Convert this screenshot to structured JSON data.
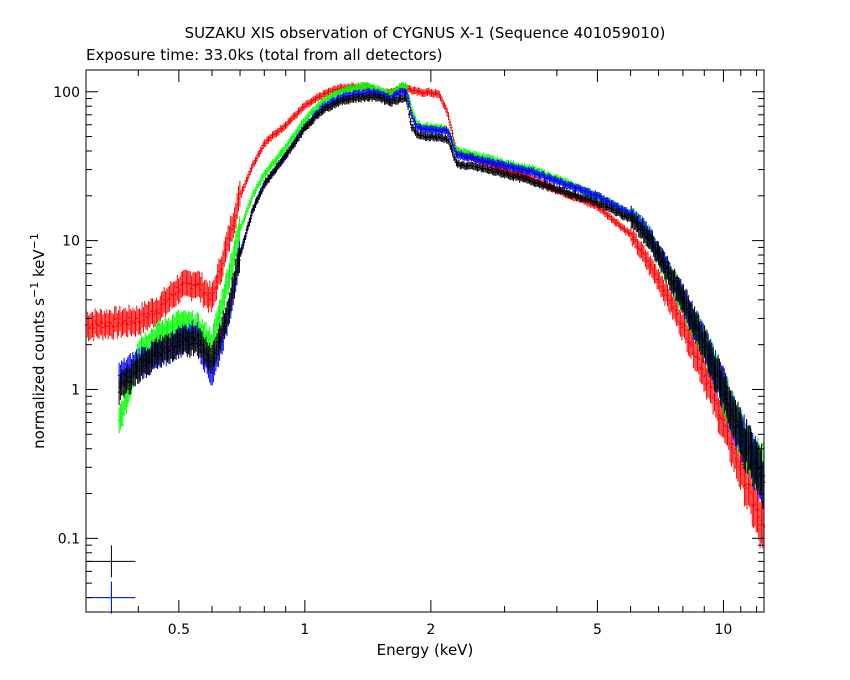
{
  "chart_data": {
    "type": "line",
    "title": "SUZAKU XIS observation of CYGNUS X-1 (Sequence 401059010)",
    "subtitle": "Exposure time: 33.0ks (total from all detectors)",
    "xlabel": "Energy (keV)",
    "ylabel": {
      "base": "normalized counts s",
      "sup1": "−1",
      "mid": " keV",
      "sup2": "−1"
    },
    "xscale": "log",
    "yscale": "log",
    "xlim": [
      0.3,
      12.5
    ],
    "ylim": [
      0.032,
      140
    ],
    "x_ticks": [
      {
        "value": 0.5,
        "label": "0.5"
      },
      {
        "value": 1,
        "label": "1"
      },
      {
        "value": 2,
        "label": "2"
      },
      {
        "value": 5,
        "label": "5"
      },
      {
        "value": 10,
        "label": "10"
      }
    ],
    "y_ticks": [
      {
        "value": 0.1,
        "label": "0.1"
      },
      {
        "value": 1,
        "label": "1"
      },
      {
        "value": 10,
        "label": "10"
      },
      {
        "value": 100,
        "label": "100"
      }
    ],
    "grid": false,
    "legend": "none",
    "series": [
      {
        "color": "#ff0000",
        "x": [
          0.3,
          0.35,
          0.4,
          0.45,
          0.5,
          0.55,
          0.6,
          0.65,
          0.7,
          0.75,
          0.8,
          0.9,
          1.0,
          1.1,
          1.2,
          1.3,
          1.4,
          1.5,
          1.6,
          1.7,
          1.75,
          1.8,
          1.85,
          1.9,
          2.0,
          2.1,
          2.2,
          2.3,
          2.4,
          2.6,
          3.0,
          3.5,
          4.0,
          5.0,
          6.0,
          7.0,
          8.0,
          9.0,
          10.0,
          11.0,
          12.0,
          12.5
        ],
        "y": [
          2.7,
          2.8,
          2.9,
          3.5,
          4.8,
          5.2,
          4.0,
          9.0,
          20,
          32,
          45,
          60,
          80,
          95,
          105,
          108,
          108,
          100,
          98,
          106,
          107,
          102,
          100,
          99,
          99,
          95,
          70,
          40,
          38,
          35,
          30,
          26,
          22,
          17,
          11,
          5.5,
          2.7,
          1.3,
          0.6,
          0.3,
          0.15,
          0.11
        ]
      },
      {
        "color": "#00ff00",
        "x": [
          0.36,
          0.38,
          0.4,
          0.45,
          0.5,
          0.55,
          0.6,
          0.65,
          0.7,
          0.75,
          0.8,
          0.9,
          1.0,
          1.1,
          1.2,
          1.3,
          1.4,
          1.5,
          1.6,
          1.7,
          1.75,
          1.8,
          1.85,
          1.9,
          2.0,
          2.1,
          2.2,
          2.3,
          2.4,
          2.6,
          3.0,
          3.5,
          4.0,
          5.0,
          6.0,
          6.5,
          7.0,
          8.0,
          9.0,
          10.0,
          11.0,
          12.0,
          12.5
        ],
        "y": [
          0.6,
          1.0,
          1.8,
          2.3,
          2.7,
          2.6,
          2.0,
          5.0,
          12,
          20,
          28,
          42,
          65,
          85,
          98,
          105,
          110,
          103,
          97,
          108,
          108,
          75,
          62,
          58,
          58,
          57,
          55,
          40,
          39,
          37,
          33,
          30,
          26,
          20,
          15,
          12,
          8,
          4,
          2.0,
          1.0,
          0.5,
          0.3,
          0.28
        ]
      },
      {
        "color": "#0000ff",
        "x": [
          0.36,
          0.4,
          0.45,
          0.5,
          0.55,
          0.6,
          0.65,
          0.7,
          0.75,
          0.8,
          0.9,
          1.0,
          1.1,
          1.2,
          1.3,
          1.4,
          1.5,
          1.6,
          1.7,
          1.75,
          1.8,
          1.85,
          1.9,
          2.0,
          2.1,
          2.2,
          2.3,
          2.4,
          2.6,
          3.0,
          3.5,
          4.0,
          5.0,
          6.0,
          6.5,
          7.0,
          8.0,
          9.0,
          10.0,
          11.0,
          12.0,
          12.5
        ],
        "y": [
          1.2,
          1.5,
          1.7,
          2.1,
          2.3,
          1.3,
          2.8,
          8.0,
          16,
          24,
          37,
          58,
          78,
          90,
          96,
          98,
          98,
          90,
          100,
          100,
          70,
          58,
          56,
          56,
          55,
          54,
          38,
          37,
          35,
          32,
          29,
          25,
          20,
          15,
          12,
          8.2,
          4.1,
          2.0,
          1.0,
          0.5,
          0.3,
          0.25
        ]
      },
      {
        "color": "#000000",
        "x": [
          0.36,
          0.4,
          0.45,
          0.5,
          0.55,
          0.6,
          0.65,
          0.7,
          0.75,
          0.8,
          0.9,
          1.0,
          1.1,
          1.2,
          1.3,
          1.4,
          1.5,
          1.6,
          1.7,
          1.75,
          1.8,
          1.85,
          1.9,
          2.0,
          2.1,
          2.2,
          2.3,
          2.4,
          2.6,
          3.0,
          3.5,
          4.0,
          5.0,
          6.0,
          6.5,
          7.0,
          8.0,
          9.0,
          10.0,
          11.0,
          12.0,
          12.5
        ],
        "y": [
          1.0,
          1.4,
          1.8,
          2.0,
          2.2,
          1.6,
          3.0,
          8.0,
          16,
          24,
          37,
          57,
          75,
          85,
          90,
          92,
          92,
          85,
          90,
          90,
          58,
          52,
          50,
          50,
          49,
          48,
          33,
          32,
          31,
          28,
          25,
          22,
          18,
          14,
          11,
          8,
          4,
          2,
          1,
          0.5,
          0.3,
          0.25
        ]
      }
    ],
    "error_markers": [
      {
        "color": "#000000",
        "x": 0.345,
        "y": 0.07
      },
      {
        "color": "#00ff00",
        "x": 0.345,
        "y": 0.04
      },
      {
        "color": "#0000ff",
        "x": 0.345,
        "y": 0.04
      }
    ]
  }
}
